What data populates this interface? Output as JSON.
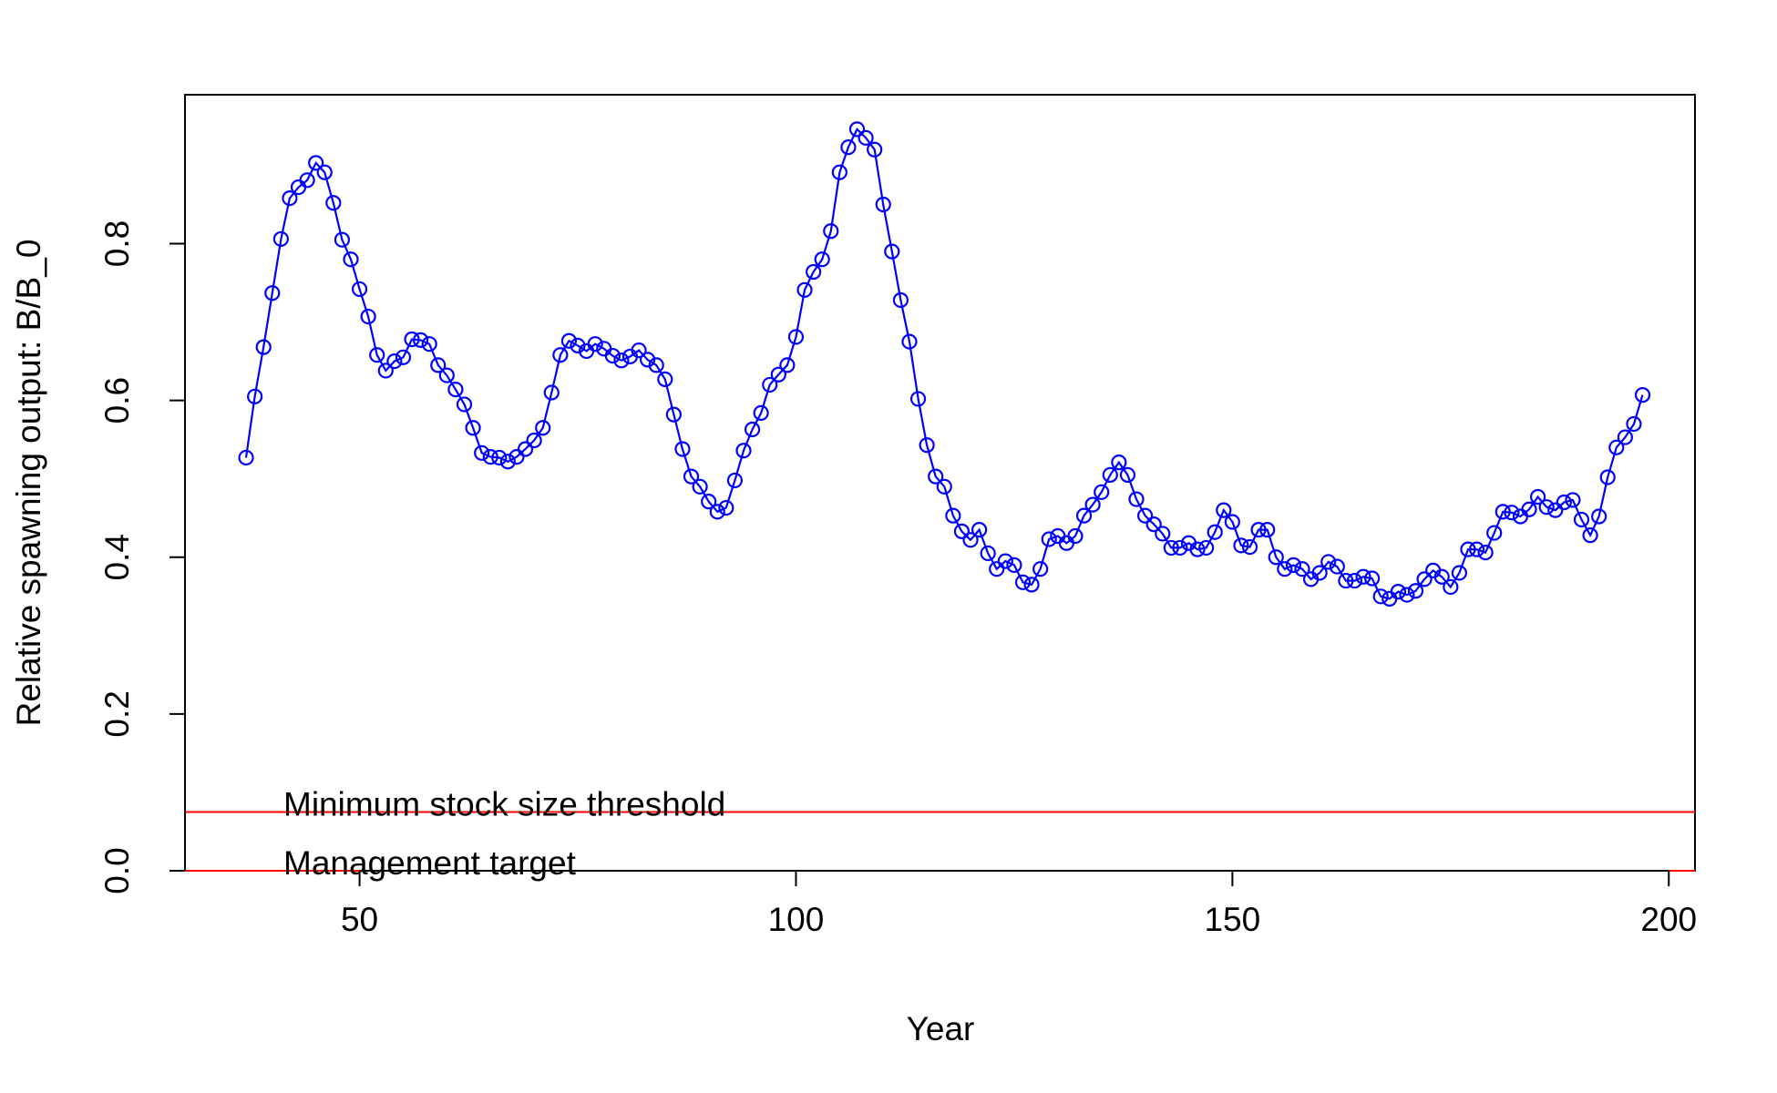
{
  "chart_data": {
    "type": "line",
    "title": "",
    "xlabel": "Year",
    "ylabel": "Relative spawning output: B/B_0",
    "xlim": [
      30,
      203
    ],
    "ylim": [
      0,
      0.99
    ],
    "xticks": [
      50,
      100,
      150,
      200
    ],
    "yticks": [
      0.0,
      0.2,
      0.4,
      0.6,
      0.8
    ],
    "ytick_labels": [
      "0.0",
      "0.2",
      "0.4",
      "0.6",
      "0.8"
    ],
    "grid": false,
    "series": [
      {
        "color": "#0000ff",
        "marker": "open-circle",
        "x": [
          37,
          38,
          39,
          40,
          41,
          42,
          43,
          44,
          45,
          46,
          47,
          48,
          49,
          50,
          51,
          52,
          53,
          54,
          55,
          56,
          57,
          58,
          59,
          60,
          61,
          62,
          63,
          64,
          65,
          66,
          67,
          68,
          69,
          70,
          71,
          72,
          73,
          74,
          75,
          76,
          77,
          78,
          79,
          80,
          81,
          82,
          83,
          84,
          85,
          86,
          87,
          88,
          89,
          90,
          91,
          92,
          93,
          94,
          95,
          96,
          97,
          98,
          99,
          100,
          101,
          102,
          103,
          104,
          105,
          106,
          107,
          108,
          109,
          110,
          111,
          112,
          113,
          114,
          115,
          116,
          117,
          118,
          119,
          120,
          121,
          122,
          123,
          124,
          125,
          126,
          127,
          128,
          129,
          130,
          131,
          132,
          133,
          134,
          135,
          136,
          137,
          138,
          139,
          140,
          141,
          142,
          143,
          144,
          145,
          146,
          147,
          148,
          149,
          150,
          151,
          152,
          153,
          154,
          155,
          156,
          157,
          158,
          159,
          160,
          161,
          162,
          163,
          164,
          165,
          166,
          167,
          168,
          169,
          170,
          171,
          172,
          173,
          174,
          175,
          176,
          177,
          178,
          179,
          180,
          181,
          182,
          183,
          184,
          185,
          186,
          187,
          188,
          189,
          190,
          191,
          192,
          193,
          194,
          195,
          196,
          197
        ],
        "y": [
          0.527,
          0.605,
          0.668,
          0.737,
          0.806,
          0.858,
          0.872,
          0.881,
          0.903,
          0.891,
          0.852,
          0.805,
          0.78,
          0.742,
          0.707,
          0.658,
          0.638,
          0.65,
          0.655,
          0.678,
          0.677,
          0.672,
          0.645,
          0.632,
          0.614,
          0.595,
          0.565,
          0.533,
          0.528,
          0.527,
          0.522,
          0.528,
          0.538,
          0.549,
          0.565,
          0.61,
          0.658,
          0.676,
          0.67,
          0.663,
          0.672,
          0.666,
          0.657,
          0.651,
          0.656,
          0.664,
          0.652,
          0.645,
          0.627,
          0.582,
          0.538,
          0.503,
          0.49,
          0.471,
          0.458,
          0.463,
          0.498,
          0.536,
          0.563,
          0.584,
          0.62,
          0.633,
          0.645,
          0.681,
          0.741,
          0.764,
          0.78,
          0.816,
          0.891,
          0.923,
          0.946,
          0.935,
          0.92,
          0.85,
          0.79,
          0.728,
          0.675,
          0.602,
          0.543,
          0.503,
          0.49,
          0.453,
          0.433,
          0.422,
          0.435,
          0.405,
          0.385,
          0.395,
          0.39,
          0.368,
          0.365,
          0.385,
          0.423,
          0.427,
          0.418,
          0.427,
          0.453,
          0.467,
          0.483,
          0.505,
          0.521,
          0.505,
          0.474,
          0.453,
          0.442,
          0.43,
          0.412,
          0.412,
          0.418,
          0.41,
          0.412,
          0.432,
          0.46,
          0.445,
          0.415,
          0.413,
          0.435,
          0.435,
          0.4,
          0.385,
          0.39,
          0.385,
          0.372,
          0.38,
          0.394,
          0.388,
          0.37,
          0.37,
          0.375,
          0.373,
          0.35,
          0.347,
          0.356,
          0.352,
          0.357,
          0.372,
          0.383,
          0.375,
          0.362,
          0.38,
          0.41,
          0.41,
          0.406,
          0.431,
          0.458,
          0.457,
          0.452,
          0.461,
          0.477,
          0.464,
          0.46,
          0.47,
          0.473,
          0.448,
          0.428,
          0.452,
          0.502,
          0.54,
          0.553,
          0.57,
          0.607
        ]
      }
    ],
    "reference_lines": [
      {
        "y": 0.075,
        "label": "Minimum stock size threshold",
        "color": "#ff0000"
      },
      {
        "y": 0.0,
        "label": "Management target",
        "color": "#ff0000"
      }
    ]
  }
}
